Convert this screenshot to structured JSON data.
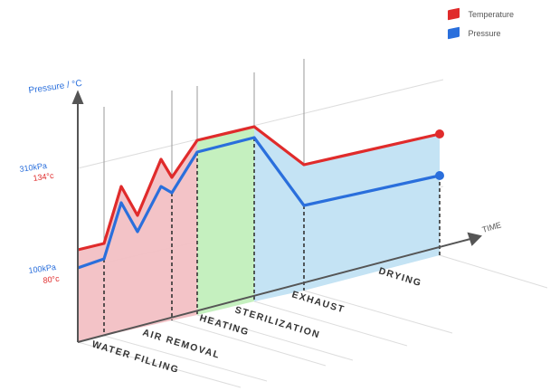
{
  "legend": [
    {
      "label": "Temperature",
      "color": "#e02b2b"
    },
    {
      "label": "Pressure",
      "color": "#2a6fdc"
    }
  ],
  "axes": {
    "y_label": "Pressure / °C",
    "y_ticks": [
      {
        "pressure": "310kPa",
        "temp": "134°c"
      },
      {
        "pressure": "100kPa",
        "temp": "80°c"
      }
    ],
    "x_label": "TIME"
  },
  "phases": [
    {
      "label": "WATER FILLING"
    },
    {
      "label": "AIR REMOVAL"
    },
    {
      "label": "HEATING"
    },
    {
      "label": "STERILIZATION"
    },
    {
      "label": "EXHAUST"
    },
    {
      "label": "DRYING"
    }
  ],
  "colors": {
    "phase_fill_pink": "#f2c0c4",
    "phase_fill_green": "#c5f0bf",
    "phase_fill_blue": "#c4e3f4",
    "temperature_line": "#e02b2b",
    "pressure_line": "#2a6fdc",
    "axis": "#555555"
  }
}
